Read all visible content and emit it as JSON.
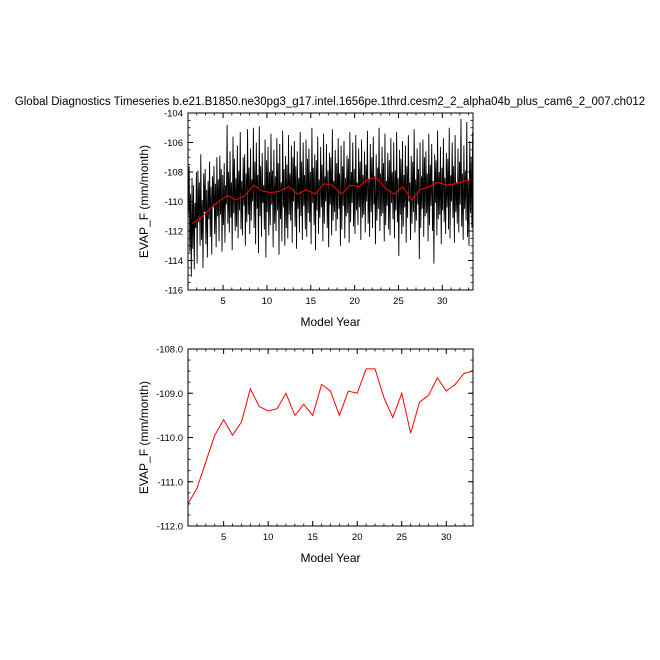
{
  "title": "Global Diagnostics Timeseries b.e21.B1850.ne30pg3_g17.intel.1656pe.1thrd.cesm2_2_alpha04b_plus_cam6_2_007.ch012",
  "chart_data": [
    {
      "type": "line",
      "xlabel": "Model Year",
      "ylabel": "EVAP_F (mm/month)",
      "xlim": [
        1,
        33.5
      ],
      "ylim": [
        -116,
        -104
      ],
      "xticks": [
        "5",
        "10",
        "15",
        "20",
        "25",
        "30"
      ],
      "yticks": [
        "-104",
        "-106",
        "-108",
        "-110",
        "-112",
        "-114",
        "-116"
      ],
      "series": [
        {
          "color": "#000000",
          "note": "monthly values",
          "x": [
            1.04,
            1.13,
            1.21,
            1.29,
            1.38,
            1.46,
            1.54,
            1.63,
            1.71,
            1.79,
            1.88,
            1.96,
            2.04,
            2.13,
            2.21,
            2.29,
            2.38,
            2.46,
            2.54,
            2.63,
            2.71,
            2.79,
            2.88,
            2.96,
            3.04,
            3.13,
            3.21,
            3.29,
            3.38,
            3.46,
            3.54,
            3.63,
            3.71,
            3.79,
            3.88,
            3.96,
            4.04,
            4.13,
            4.21,
            4.29,
            4.38,
            4.46,
            4.54,
            4.63,
            4.71,
            4.79,
            4.88,
            4.96,
            5.04,
            5.13,
            5.21,
            5.29,
            5.38,
            5.46,
            5.54,
            5.63,
            5.71,
            5.79,
            5.88,
            5.96,
            6.04,
            6.13,
            6.21,
            6.29,
            6.38,
            6.46,
            6.54,
            6.63,
            6.71,
            6.79,
            6.88,
            6.96,
            7.04,
            7.13,
            7.21,
            7.29,
            7.38,
            7.46,
            7.54,
            7.63,
            7.71,
            7.79,
            7.88,
            7.96,
            8.04,
            8.13,
            8.21,
            8.29,
            8.38,
            8.46,
            8.54,
            8.63,
            8.71,
            8.79,
            8.88,
            8.96,
            9.04,
            9.13,
            9.21,
            9.29,
            9.38,
            9.46,
            9.54,
            9.63,
            9.71,
            9.79,
            9.88,
            9.96,
            10.04,
            10.13,
            10.21,
            10.29,
            10.38,
            10.46,
            10.54,
            10.63,
            10.71,
            10.79,
            10.88,
            10.96,
            11.04,
            11.13,
            11.21,
            11.29,
            11.38,
            11.46,
            11.54,
            11.63,
            11.71,
            11.79,
            11.88,
            11.96,
            12.04,
            12.13,
            12.21,
            12.29,
            12.38,
            12.46,
            12.54,
            12.63,
            12.71,
            12.79,
            12.88,
            12.96,
            13.04,
            13.13,
            13.21,
            13.29,
            13.38,
            13.46,
            13.54,
            13.63,
            13.71,
            13.79,
            13.88,
            13.96,
            14.04,
            14.13,
            14.21,
            14.29,
            14.38,
            14.46,
            14.54,
            14.63,
            14.71,
            14.79,
            14.88,
            14.96,
            15.04,
            15.13,
            15.21,
            15.29,
            15.38,
            15.46,
            15.54,
            15.63,
            15.71,
            15.79,
            15.88,
            15.96,
            16.04,
            16.13,
            16.21,
            16.29,
            16.38,
            16.46,
            16.54,
            16.63,
            16.71,
            16.79,
            16.88,
            16.96,
            17.04,
            17.13,
            17.21,
            17.29,
            17.38,
            17.46,
            17.54,
            17.63,
            17.71,
            17.79,
            17.88,
            17.96,
            18.04,
            18.13,
            18.21,
            18.29,
            18.38,
            18.46,
            18.54,
            18.63,
            18.71,
            18.79,
            18.88,
            18.96,
            19.04,
            19.13,
            19.21,
            19.29,
            19.38,
            19.46,
            19.54,
            19.63,
            19.71,
            19.79,
            19.88,
            19.96,
            20.04,
            20.13,
            20.21,
            20.29,
            20.38,
            20.46,
            20.54,
            20.63,
            20.71,
            20.79,
            20.88,
            20.96,
            21.04,
            21.13,
            21.21,
            21.29,
            21.38,
            21.46,
            21.54,
            21.63,
            21.71,
            21.79,
            21.88,
            21.96,
            22.04,
            22.13,
            22.21,
            22.29,
            22.38,
            22.46,
            22.54,
            22.63,
            22.71,
            22.79,
            22.88,
            22.96,
            23.04,
            23.13,
            23.21,
            23.29,
            23.38,
            23.46,
            23.54,
            23.63,
            23.71,
            23.79,
            23.88,
            23.96,
            24.04,
            24.13,
            24.21,
            24.29,
            24.38,
            24.46,
            24.54,
            24.63,
            24.71,
            24.79,
            24.88,
            24.96,
            25.04,
            25.13,
            25.21,
            25.29,
            25.38,
            25.46,
            25.54,
            25.63,
            25.71,
            25.79,
            25.88,
            25.96,
            26.04,
            26.13,
            26.21,
            26.29,
            26.38,
            26.46,
            26.54,
            26.63,
            26.71,
            26.79,
            26.88,
            26.96,
            27.04,
            27.13,
            27.21,
            27.29,
            27.38,
            27.46,
            27.54,
            27.63,
            27.71,
            27.79,
            27.88,
            27.96,
            28.04,
            28.13,
            28.21,
            28.29,
            28.38,
            28.46,
            28.54,
            28.63,
            28.71,
            28.79,
            28.88,
            28.96,
            29.04,
            29.13,
            29.21,
            29.29,
            29.38,
            29.46,
            29.54,
            29.63,
            29.71,
            29.79,
            29.88,
            29.96,
            30.04,
            30.13,
            30.21,
            30.29,
            30.38,
            30.46,
            30.54,
            30.63,
            30.71,
            30.79,
            30.88,
            30.96,
            31.04,
            31.13,
            31.21,
            31.29,
            31.38,
            31.46,
            31.54,
            31.63,
            31.71,
            31.79,
            31.88,
            31.96,
            32.04,
            32.13,
            32.21,
            32.29,
            32.38,
            32.46,
            32.54,
            32.63,
            32.71,
            32.79,
            32.88,
            32.96,
            33.04,
            33.13,
            33.21,
            33.29,
            33.38,
            33.46
          ],
          "y": [
            -110.9,
            -107.6,
            -113.4,
            -109.5,
            -115.1,
            -108.4,
            -113.2,
            -108.9,
            -114.6,
            -110.1,
            -111.8,
            -108.0,
            -114.2,
            -107.9,
            -111.4,
            -108.7,
            -113.0,
            -106.8,
            -112.6,
            -109.9,
            -114.5,
            -108.1,
            -110.7,
            -107.8,
            -112.9,
            -109.2,
            -113.8,
            -108.6,
            -111.2,
            -107.3,
            -112.4,
            -109.0,
            -113.6,
            -108.3,
            -110.4,
            -107.6,
            -112.2,
            -108.8,
            -113.1,
            -107.0,
            -111.0,
            -108.5,
            -112.7,
            -106.9,
            -110.9,
            -107.8,
            -113.4,
            -108.2,
            -111.6,
            -107.4,
            -112.8,
            -108.9,
            -110.2,
            -104.8,
            -111.5,
            -108.0,
            -112.1,
            -106.6,
            -111.1,
            -108.7,
            -113.3,
            -105.6,
            -110.8,
            -107.1,
            -112.0,
            -108.4,
            -111.7,
            -106.2,
            -112.5,
            -107.9,
            -110.6,
            -105.3,
            -111.9,
            -108.6,
            -112.3,
            -107.0,
            -110.3,
            -106.8,
            -113.0,
            -108.1,
            -111.4,
            -105.1,
            -110.9,
            -107.7,
            -112.2,
            -106.4,
            -111.3,
            -108.5,
            -110.0,
            -105.0,
            -111.8,
            -107.3,
            -112.9,
            -106.0,
            -110.5,
            -108.2,
            -113.5,
            -104.9,
            -111.0,
            -107.6,
            -112.4,
            -106.7,
            -110.1,
            -108.9,
            -111.9,
            -105.8,
            -113.8,
            -107.2,
            -110.7,
            -106.3,
            -112.3,
            -108.0,
            -111.6,
            -105.4,
            -110.2,
            -107.9,
            -113.1,
            -106.5,
            -111.5,
            -108.3,
            -112.0,
            -105.7,
            -110.6,
            -107.4,
            -113.6,
            -106.1,
            -111.2,
            -108.7,
            -112.7,
            -105.2,
            -110.4,
            -107.8,
            -113.0,
            -106.9,
            -111.8,
            -107.5,
            -112.5,
            -105.5,
            -110.9,
            -108.1,
            -111.3,
            -106.2,
            -112.8,
            -107.0,
            -110.0,
            -105.9,
            -111.7,
            -107.6,
            -113.2,
            -106.6,
            -110.5,
            -108.4,
            -112.1,
            -105.3,
            -111.0,
            -107.3,
            -112.6,
            -106.0,
            -110.3,
            -108.2,
            -111.9,
            -105.8,
            -112.4,
            -107.1,
            -110.8,
            -106.4,
            -111.4,
            -108.0,
            -112.9,
            -105.0,
            -110.1,
            -107.7,
            -111.6,
            -106.8,
            -113.3,
            -107.2,
            -110.6,
            -105.6,
            -112.2,
            -108.5,
            -111.1,
            -106.3,
            -110.4,
            -107.5,
            -112.7,
            -105.4,
            -111.5,
            -108.3,
            -110.0,
            -106.1,
            -111.8,
            -107.9,
            -113.1,
            -106.7,
            -110.2,
            -107.0,
            -112.3,
            -105.1,
            -111.3,
            -108.6,
            -110.7,
            -106.5,
            -112.0,
            -107.4,
            -111.2,
            -105.7,
            -110.5,
            -108.1,
            -113.0,
            -106.2,
            -111.9,
            -107.6,
            -110.3,
            -105.9,
            -112.5,
            -108.4,
            -111.0,
            -106.9,
            -110.8,
            -107.1,
            -112.8,
            -105.3,
            -111.4,
            -108.0,
            -110.1,
            -106.0,
            -111.7,
            -107.8,
            -112.2,
            -105.5,
            -110.6,
            -108.7,
            -111.6,
            -106.4,
            -110.4,
            -107.3,
            -112.6,
            -105.8,
            -111.1,
            -108.2,
            -110.9,
            -106.6,
            -112.1,
            -107.5,
            -110.0,
            -105.2,
            -111.5,
            -108.5,
            -112.4,
            -106.1,
            -110.7,
            -107.0,
            -111.8,
            -105.6,
            -110.2,
            -108.3,
            -112.9,
            -106.8,
            -111.3,
            -107.7,
            -110.5,
            -105.0,
            -112.0,
            -108.1,
            -111.0,
            -106.3,
            -110.8,
            -107.4,
            -112.7,
            -105.4,
            -111.6,
            -108.6,
            -110.3,
            -106.7,
            -111.9,
            -107.2,
            -112.3,
            -105.7,
            -110.1,
            -108.0,
            -111.2,
            -106.0,
            -112.5,
            -107.9,
            -110.6,
            -105.3,
            -111.4,
            -108.4,
            -113.7,
            -106.5,
            -110.9,
            -107.1,
            -112.2,
            -105.9,
            -111.7,
            -108.2,
            -110.4,
            -106.2,
            -112.8,
            -107.6,
            -111.1,
            -105.5,
            -110.0,
            -108.7,
            -112.6,
            -106.9,
            -111.5,
            -107.3,
            -110.7,
            -105.1,
            -112.1,
            -108.5,
            -111.3,
            -106.4,
            -110.2,
            -107.8,
            -113.9,
            -106.0,
            -111.8,
            -108.3,
            -110.5,
            -105.8,
            -112.4,
            -107.0,
            -111.0,
            -106.6,
            -110.8,
            -108.1,
            -112.7,
            -105.4,
            -111.6,
            -107.5,
            -110.3,
            -106.1,
            -112.0,
            -108.6,
            -114.2,
            -106.8,
            -110.1,
            -107.2,
            -112.3,
            -105.2,
            -111.2,
            -108.0,
            -110.9,
            -106.3,
            -112.9,
            -107.7,
            -110.6,
            -105.7,
            -111.4,
            -108.4,
            -112.2,
            -106.7,
            -110.4,
            -107.1,
            -111.9,
            -105.0,
            -112.5,
            -108.2,
            -110.0,
            -106.0,
            -111.1,
            -107.6,
            -112.8,
            -105.5,
            -110.7,
            -108.7,
            -111.5,
            -106.4,
            -112.1,
            -107.3,
            -110.2,
            -104.4,
            -111.7,
            -108.1,
            -112.6,
            -106.2,
            -110.5,
            -107.9,
            -111.3,
            -104.6,
            -112.4,
            -108.5,
            -113.0,
            -105.9,
            -110.8,
            -107.0,
            -111.8,
            -105.3
          ]
        },
        {
          "color": "#ff0000",
          "note": "annual means",
          "x": [
            1.5,
            2.5,
            3.5,
            4.5,
            5.5,
            6.5,
            7.5,
            8.5,
            9.5,
            10.5,
            11.5,
            12.5,
            13.5,
            14.5,
            15.5,
            16.5,
            17.5,
            18.5,
            19.5,
            20.5,
            21.5,
            22.5,
            23.5,
            24.5,
            25.5,
            26.5,
            27.5,
            28.5,
            29.5,
            30.5,
            31.5,
            32.5,
            33.5
          ],
          "y": [
            -111.5,
            -111.1,
            -110.5,
            -110.0,
            -109.6,
            -109.9,
            -109.6,
            -108.9,
            -109.3,
            -109.4,
            -109.3,
            -109.0,
            -109.5,
            -109.2,
            -109.5,
            -108.8,
            -108.9,
            -109.5,
            -108.9,
            -109.0,
            -108.5,
            -108.4,
            -109.1,
            -109.5,
            -109.0,
            -109.9,
            -109.2,
            -109.0,
            -108.7,
            -108.9,
            -108.8,
            -108.6,
            -108.5
          ]
        }
      ]
    },
    {
      "type": "line",
      "xlabel": "Model Year",
      "ylabel": "EVAP_F (mm/month)",
      "xlim": [
        1,
        33
      ],
      "ylim": [
        -112,
        -108
      ],
      "xticks": [
        "5",
        "10",
        "15",
        "20",
        "25",
        "30"
      ],
      "yticks": [
        "-108.0",
        "-109.0",
        "-110.0",
        "-111.0",
        "-112.0"
      ],
      "series": [
        {
          "color": "#ff0000",
          "x": [
            1,
            2,
            3,
            4,
            5,
            6,
            7,
            8,
            9,
            10,
            11,
            12,
            13,
            14,
            15,
            16,
            17,
            18,
            19,
            20,
            21,
            22,
            23,
            24,
            25,
            26,
            27,
            28,
            29,
            30,
            31,
            32,
            33
          ],
          "y": [
            -111.5,
            -111.15,
            -110.55,
            -109.95,
            -109.6,
            -109.95,
            -109.65,
            -108.9,
            -109.3,
            -109.4,
            -109.35,
            -109.0,
            -109.5,
            -109.25,
            -109.5,
            -108.8,
            -108.95,
            -109.5,
            -108.95,
            -109.0,
            -108.45,
            -108.45,
            -109.1,
            -109.55,
            -109.0,
            -109.9,
            -109.2,
            -109.05,
            -108.65,
            -108.95,
            -108.8,
            -108.55,
            -108.5
          ]
        }
      ]
    }
  ]
}
